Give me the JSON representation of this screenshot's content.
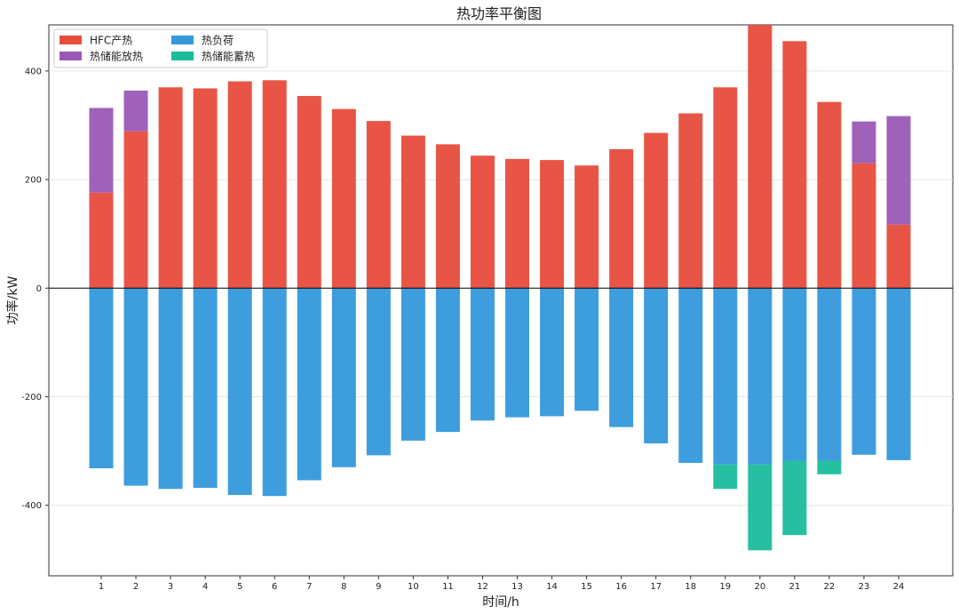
{
  "chart_data": {
    "type": "bar",
    "title": "热功率平衡图",
    "xlabel": "时间/h",
    "ylabel": "功率/kW",
    "ylim": [
      -530,
      485
    ],
    "yticks": [
      -400,
      -200,
      0,
      200,
      400
    ],
    "grid": true,
    "legend_position": "top-left",
    "categories": [
      "1",
      "2",
      "3",
      "4",
      "5",
      "6",
      "7",
      "8",
      "9",
      "10",
      "11",
      "12",
      "13",
      "14",
      "15",
      "16",
      "17",
      "18",
      "19",
      "20",
      "21",
      "22",
      "23",
      "24"
    ],
    "series": [
      {
        "name": "HFC产热",
        "color": "#e74c3c",
        "stack": "positive",
        "values": [
          176,
          289,
          370,
          368,
          381,
          383,
          354,
          330,
          308,
          281,
          265,
          244,
          238,
          236,
          226,
          256,
          286,
          322,
          370,
          485,
          455,
          343,
          230,
          117
        ]
      },
      {
        "name": "热储能放热",
        "color": "#9b59b6",
        "stack": "positive",
        "values": [
          156,
          75,
          0,
          0,
          0,
          0,
          0,
          0,
          0,
          0,
          0,
          0,
          0,
          0,
          0,
          0,
          0,
          0,
          0,
          0,
          0,
          0,
          77,
          200
        ]
      },
      {
        "name": "热负荷",
        "color": "#3498db",
        "stack": "negative",
        "values": [
          -332,
          -364,
          -370,
          -368,
          -381,
          -383,
          -354,
          -330,
          -308,
          -281,
          -265,
          -244,
          -238,
          -236,
          -226,
          -256,
          -286,
          -322,
          -325,
          -325,
          -318,
          -318,
          -307,
          -317
        ]
      },
      {
        "name": "热储能蓄热",
        "color": "#1abc9c",
        "stack": "negative",
        "values": [
          0,
          0,
          0,
          0,
          0,
          0,
          0,
          0,
          0,
          0,
          0,
          0,
          0,
          0,
          0,
          0,
          0,
          0,
          -45,
          -158,
          -137,
          -25,
          0,
          0
        ]
      }
    ]
  }
}
